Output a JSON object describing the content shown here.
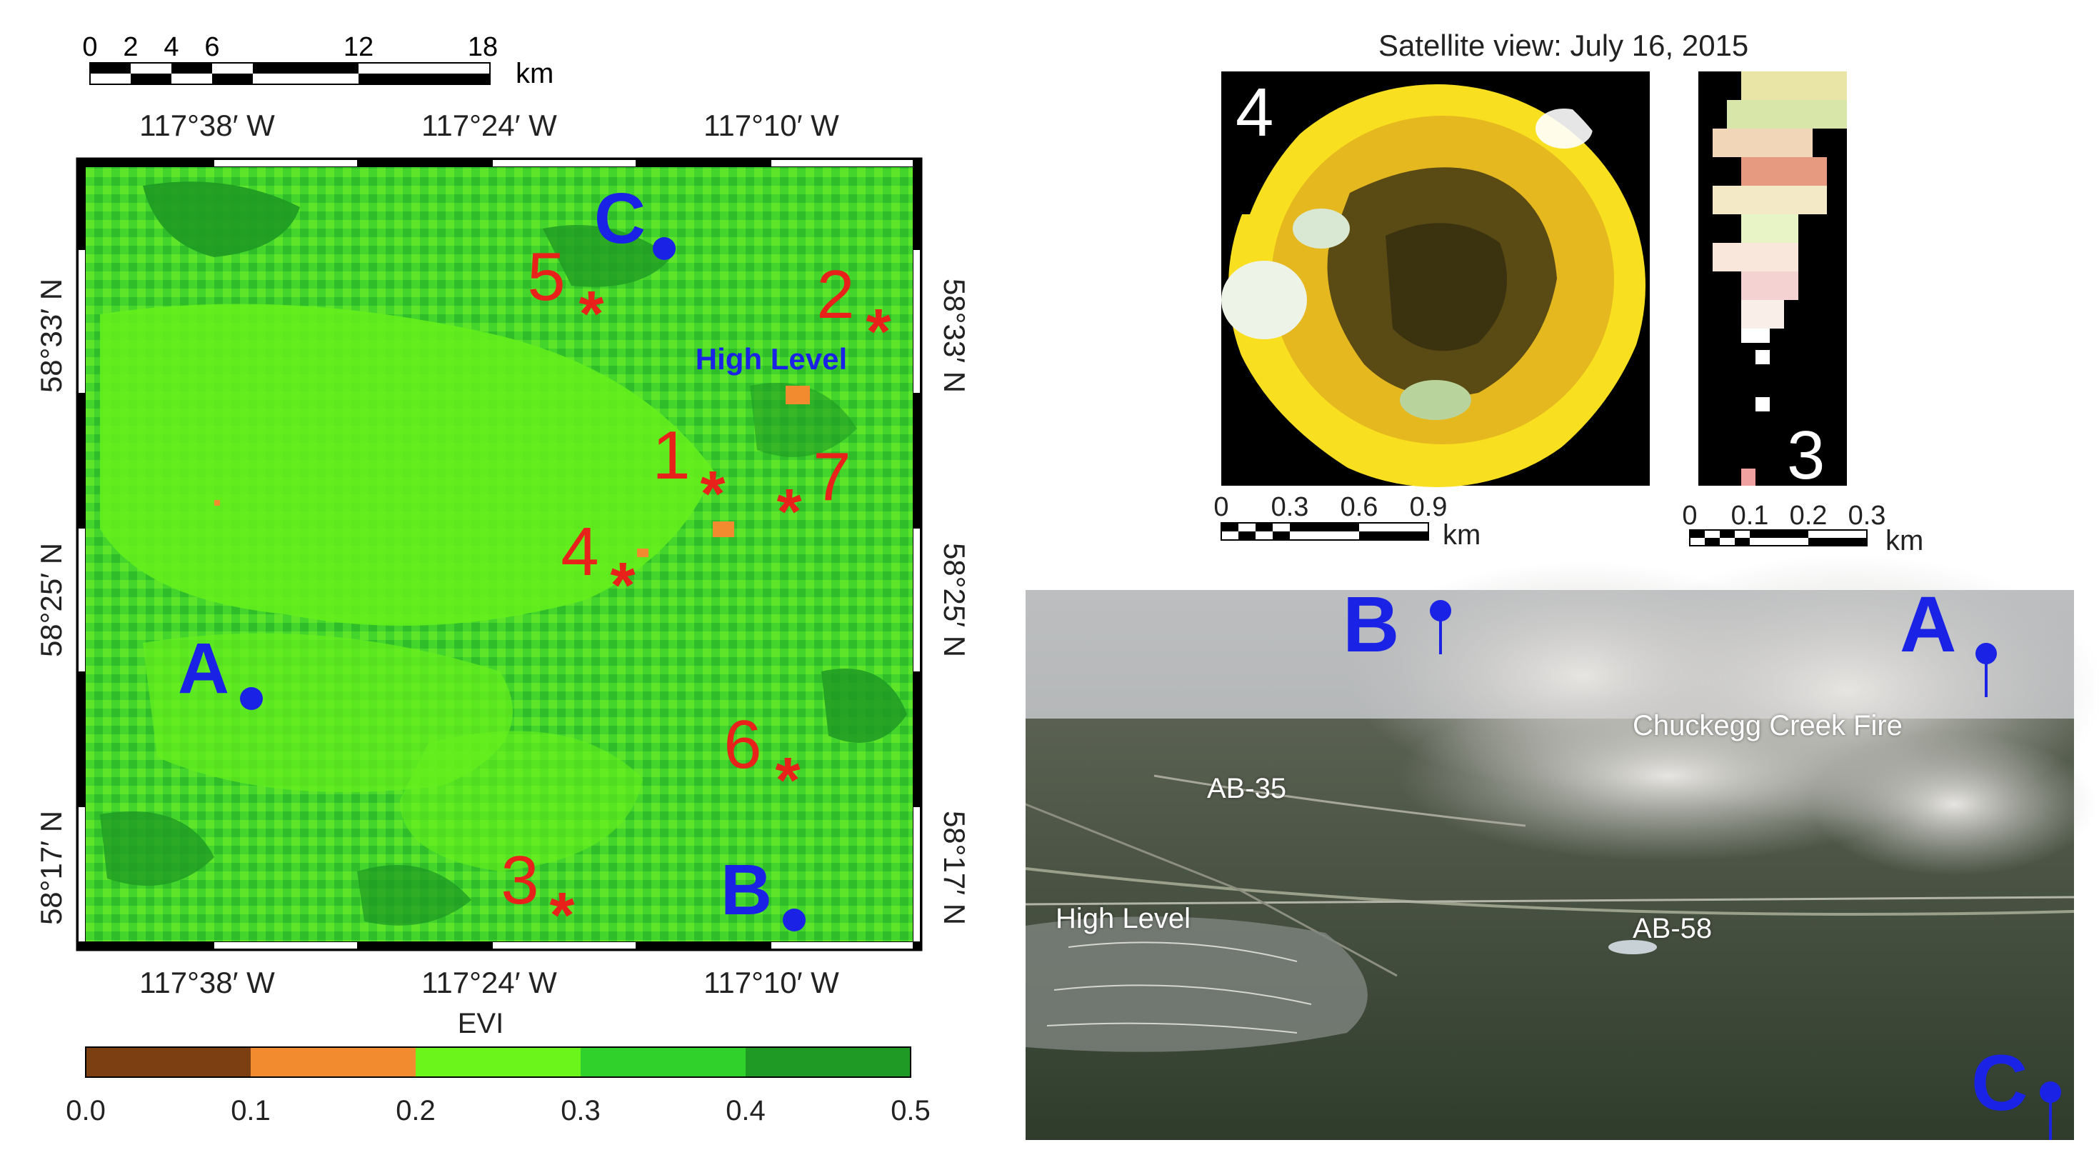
{
  "scale_main": {
    "ticks": [
      "0",
      "2",
      "4",
      "6",
      "12",
      "18"
    ],
    "unit": "km"
  },
  "map": {
    "top_lon_labels": [
      "117°38′ W",
      "117°24′ W",
      "117°10′ W"
    ],
    "bottom_lon_labels": [
      "117°38′ W",
      "117°24′ W",
      "117°10′ W"
    ],
    "left_lat_labels": [
      "58°33′ N",
      "58°25′ N",
      "58°17′ N"
    ],
    "right_lat_labels": [
      "58°33′ N",
      "58°25′ N",
      "58°17′ N"
    ],
    "town_label": "High Level",
    "points": [
      {
        "label": "A",
        "type": "location"
      },
      {
        "label": "B",
        "type": "location"
      },
      {
        "label": "C",
        "type": "location"
      }
    ],
    "fire_sites": [
      "1",
      "2",
      "3",
      "4",
      "5",
      "6",
      "7"
    ]
  },
  "legend": {
    "title": "EVI",
    "tick_labels": [
      "0.0",
      "0.1",
      "0.2",
      "0.3",
      "0.4",
      "0.5"
    ],
    "colors": [
      "#7b3f12",
      "#f28b2f",
      "#6cf51a",
      "#2fd12a",
      "#1f9a24"
    ]
  },
  "satellite": {
    "title": "Satellite view: July 16, 2015",
    "panel4": {
      "label": "4",
      "ticks": [
        "0",
        "0.3",
        "0.6",
        "0.9"
      ],
      "unit": "km"
    },
    "panel3": {
      "label": "3",
      "ticks": [
        "0",
        "0.1",
        "0.2",
        "0.3"
      ],
      "unit": "km"
    }
  },
  "photo": {
    "markers": [
      "B",
      "A",
      "C"
    ],
    "labels": [
      "Chuckegg Creek Fire",
      "AB-35",
      "High Level",
      "AB-58"
    ]
  },
  "colors": {
    "marker_blue": "#1a22e6",
    "fire_red": "#e8211b",
    "map_green": "#41d62c"
  }
}
